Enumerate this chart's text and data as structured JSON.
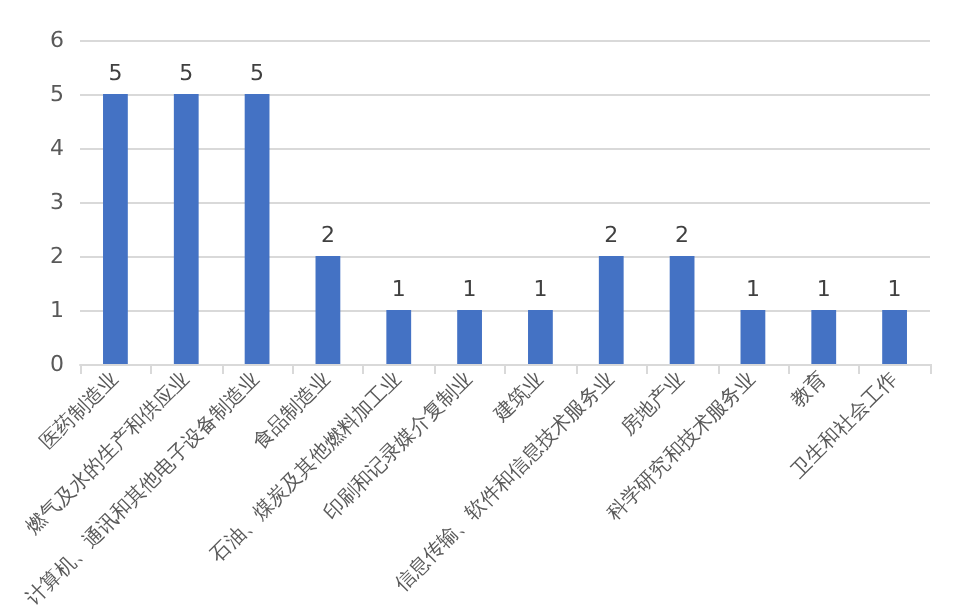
{
  "chart_data": {
    "type": "bar",
    "categories": [
      "医药制造业",
      "燃气及水的生产和供应业",
      "计算机、通讯和其他电子设备制造业",
      "食品制造业",
      "石油、煤炭及其他燃料加工业",
      "印刷和记录媒介复制业",
      "建筑业",
      "信息传输、软件和信息技术服务业",
      "房地产业",
      "科学研究和技术服务业",
      "教育",
      "卫生和社会工作"
    ],
    "values": [
      5,
      5,
      5,
      2,
      1,
      1,
      1,
      2,
      2,
      1,
      1,
      1
    ],
    "color": "#4472c4",
    "ylim": [
      0,
      6
    ],
    "yticks": [
      0,
      1,
      2,
      3,
      4,
      5,
      6
    ],
    "grid": true,
    "data_labels": true
  }
}
